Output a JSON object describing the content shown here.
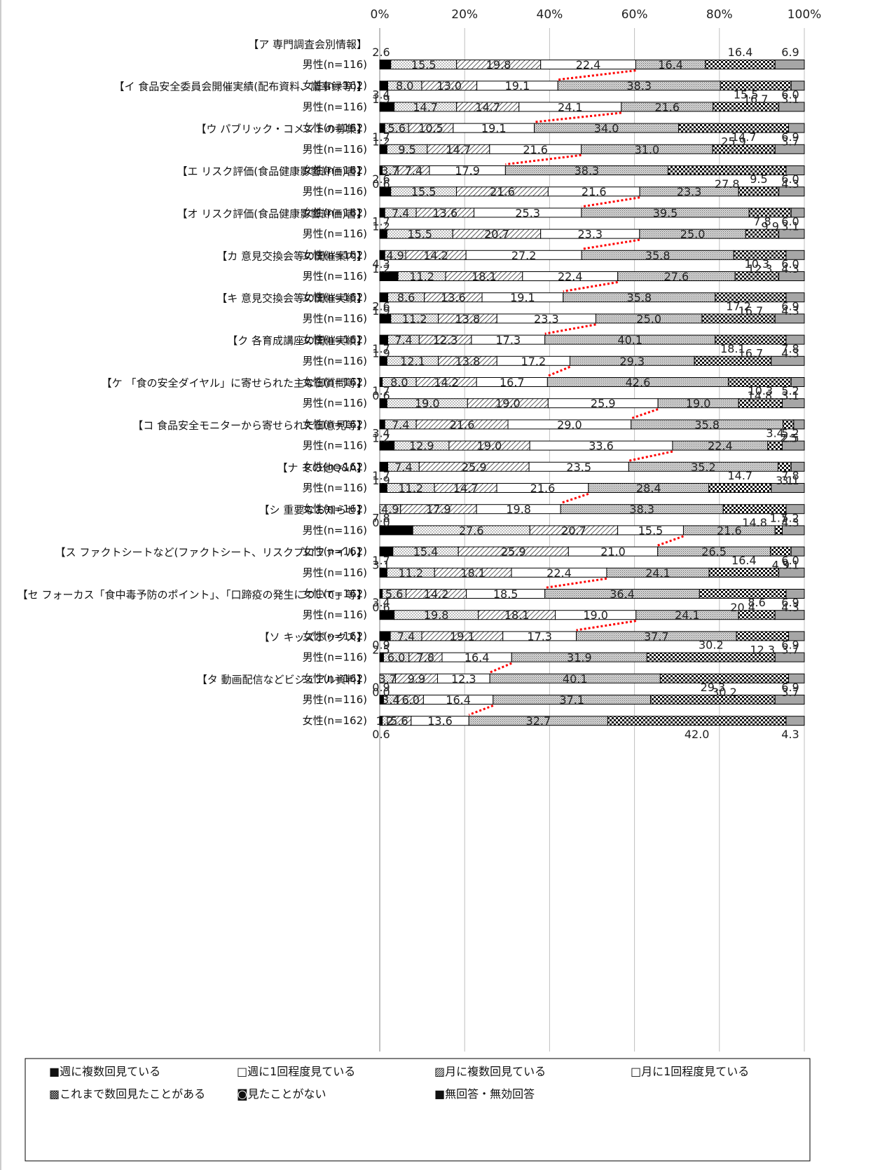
{
  "chart_data": {
    "type": "bar",
    "stacked": "100%",
    "orientation": "horizontal",
    "x_ticks": [
      "0%",
      "20%",
      "40%",
      "60%",
      "80%",
      "100%"
    ],
    "xlim": [
      0,
      100
    ],
    "grid": true,
    "legend_position": "bottom",
    "legend": [
      {
        "label": "■週に複数回見ている",
        "color": "#000000"
      },
      {
        "label": "□週に1回程度見ている",
        "color": "#ffffff"
      },
      {
        "label": "▨月に複数回見ている",
        "color": "#ffffff"
      },
      {
        "label": "□月に1回程度見ている",
        "color": "#ffffff"
      },
      {
        "label": "▩これまで数回見たことがある",
        "color": "#d9d9d9"
      },
      {
        "label": "◙見たことがない",
        "color": "#ffffff"
      },
      {
        "label": "■無回答・無効回答",
        "color": "#a6a6a6"
      }
    ],
    "groups": [
      {
        "title": "【ア 専門調査会別情報】",
        "rows": [
          {
            "label": "男性(n=116)",
            "values": [
              2.6,
              15.5,
              19.8,
              22.4,
              16.4,
              16.4,
              6.9
            ]
          },
          {
            "label": "女性(n=162)",
            "values": [
              1.9,
              8.0,
              13.0,
              19.1,
              38.3,
              16.7,
              3.1
            ]
          }
        ]
      },
      {
        "title": "【イ 食品安全委員会開催実績(配布資料、議事録等)】",
        "rows": [
          {
            "label": "男性(n=116)",
            "values": [
              3.4,
              14.7,
              14.7,
              24.1,
              21.6,
              15.5,
              6.0
            ]
          },
          {
            "label": "女性(n=162)",
            "values": [
              1.2,
              5.6,
              10.5,
              19.1,
              34.0,
              25.9,
              3.7
            ]
          }
        ]
      },
      {
        "title": "【ウ パブリック・コメントの募集】",
        "rows": [
          {
            "label": "男性(n=116)",
            "values": [
              1.7,
              9.5,
              14.7,
              21.6,
              31.0,
              14.7,
              6.9
            ]
          },
          {
            "label": "女性(n=162)",
            "values": [
              0.6,
              3.7,
              7.4,
              17.9,
              38.3,
              27.8,
              4.3
            ]
          }
        ]
      },
      {
        "title": "【エ リスク評価(食品健康影響評価)書】",
        "rows": [
          {
            "label": "男性(n=116)",
            "values": [
              2.6,
              15.5,
              21.6,
              21.6,
              23.3,
              9.5,
              6.0
            ]
          },
          {
            "label": "女性(n=162)",
            "values": [
              1.2,
              7.4,
              13.6,
              25.3,
              39.5,
              9.9,
              3.1
            ]
          }
        ]
      },
      {
        "title": "【オ リスク評価(食品健康影響評価)書】",
        "rows": [
          {
            "label": "男性(n=116)",
            "values": [
              1.7,
              15.5,
              20.7,
              23.3,
              25.0,
              7.8,
              6.0
            ]
          },
          {
            "label": "女性(n=162)",
            "values": [
              1.2,
              4.9,
              14.2,
              27.2,
              35.8,
              12.3,
              4.3
            ]
          }
        ]
      },
      {
        "title": "【カ 意見交換会等の開催案内】",
        "rows": [
          {
            "label": "男性(n=116)",
            "values": [
              4.3,
              11.2,
              18.1,
              22.4,
              27.6,
              10.3,
              6.0
            ]
          },
          {
            "label": "女性(n=162)",
            "values": [
              1.9,
              8.6,
              13.6,
              19.1,
              35.8,
              16.7,
              4.3
            ]
          }
        ]
      },
      {
        "title": "【キ 意見交換会等の開催実績】",
        "rows": [
          {
            "label": "男性(n=116)",
            "values": [
              2.6,
              11.2,
              13.8,
              23.3,
              25.0,
              17.2,
              6.9
            ]
          },
          {
            "label": "女性(n=162)",
            "values": [
              1.9,
              7.4,
              12.3,
              17.3,
              40.1,
              16.7,
              4.3
            ]
          }
        ]
      },
      {
        "title": "【ク 各育成講座の開催実績】",
        "rows": [
          {
            "label": "男性(n=116)",
            "values": [
              1.7,
              12.1,
              13.8,
              17.2,
              29.3,
              18.1,
              7.8
            ]
          },
          {
            "label": "女性(n=162)",
            "values": [
              0.6,
              8.0,
              14.2,
              16.7,
              42.6,
              14.8,
              3.1
            ]
          }
        ]
      },
      {
        "title": "【ケ 「食の安全ダイヤル」に寄せられた主な御質問等】",
        "rows": [
          {
            "label": "男性(n=116)",
            "values": [
              1.7,
              19.0,
              19.0,
              25.9,
              19.0,
              10.3,
              5.2
            ]
          },
          {
            "label": "女性(n=162)",
            "values": [
              1.2,
              7.4,
              21.6,
              29.0,
              35.8,
              2.5,
              2.5
            ]
          }
        ]
      },
      {
        "title": "【コ 食品安全モニターから寄せられた御意見等】",
        "rows": [
          {
            "label": "男性(n=116)",
            "values": [
              3.4,
              12.9,
              19.0,
              33.6,
              22.4,
              3.4,
              5.2
            ]
          },
          {
            "label": "女性(n=162)",
            "values": [
              1.9,
              7.4,
              25.9,
              23.5,
              35.2,
              3.1,
              3.1
            ]
          }
        ]
      },
      {
        "title": "【ナ その他Q&A】",
        "rows": [
          {
            "label": "男性(n=116)",
            "values": [
              1.7,
              11.2,
              14.7,
              21.6,
              28.4,
              14.7,
              7.8
            ]
          },
          {
            "label": "女性(n=162)",
            "values": [
              0.0,
              4.9,
              17.9,
              19.8,
              38.3,
              14.8,
              4.3
            ]
          }
        ]
      },
      {
        "title": "【シ 重要なお知らせ】",
        "rows": [
          {
            "label": "男性(n=116)",
            "values": [
              7.8,
              27.6,
              20.7,
              15.5,
              21.6,
              1.7,
              5.2
            ]
          },
          {
            "label": "女性(n=162)",
            "values": [
              3.1,
              15.4,
              25.9,
              21.0,
              26.5,
              4.9,
              3.1
            ]
          }
        ]
      },
      {
        "title": "【ス ファクトシートなど(ファクトシート、リスクプロファイル】",
        "rows": [
          {
            "label": "男性(n=116)",
            "values": [
              1.7,
              11.2,
              18.1,
              22.4,
              24.1,
              16.4,
              6.0
            ]
          },
          {
            "label": "女性(n=162)",
            "values": [
              0.6,
              5.6,
              14.2,
              18.5,
              36.4,
              20.4,
              4.3
            ]
          }
        ]
      },
      {
        "title": "【セ フォーカス「食中毒予防のポイント」、「口蹄疫の発生について」等】",
        "rows": [
          {
            "label": "男性(n=116)",
            "values": [
              3.4,
              19.8,
              18.1,
              19.0,
              24.1,
              8.6,
              6.9
            ]
          },
          {
            "label": "女性(n=162)",
            "values": [
              2.5,
              7.4,
              19.1,
              17.3,
              37.7,
              12.3,
              3.7
            ]
          }
        ]
      },
      {
        "title": "【ソ キッズボックス】",
        "rows": [
          {
            "label": "男性(n=116)",
            "values": [
              0.9,
              6.0,
              7.8,
              16.4,
              31.9,
              30.2,
              6.9
            ]
          },
          {
            "label": "女性(n=162)",
            "values": [
              0.0,
              3.7,
              9.9,
              12.3,
              40.1,
              30.2,
              3.7
            ]
          }
        ]
      },
      {
        "title": "【タ 動画配信などビジュアル資料】",
        "rows": [
          {
            "label": "男性(n=116)",
            "values": [
              0.9,
              3.4,
              6.0,
              16.4,
              37.1,
              29.3,
              6.9
            ]
          },
          {
            "label": "女性(n=162)",
            "values": [
              0.6,
              1.2,
              5.6,
              13.6,
              32.7,
              42.0,
              4.3
            ]
          }
        ]
      }
    ]
  }
}
